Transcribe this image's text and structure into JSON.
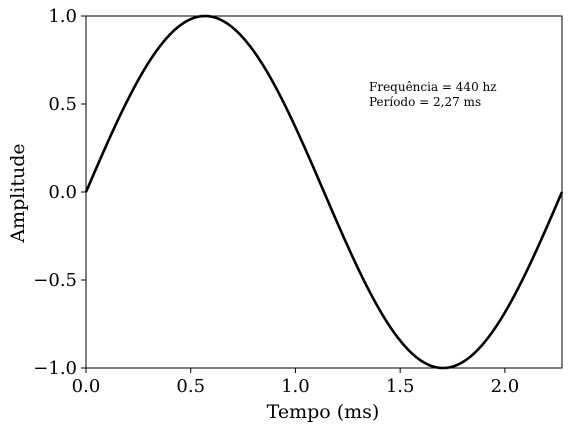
{
  "chart_data": {
    "type": "line",
    "title": "",
    "xlabel": "Tempo (ms)",
    "ylabel": "Amplitude",
    "xlim": [
      0,
      2.2727
    ],
    "ylim": [
      -1.0,
      1.0
    ],
    "grid": false,
    "x_ticks": [
      0.0,
      0.5,
      1.0,
      1.5,
      2.0
    ],
    "x_tick_labels": [
      "0.0",
      "0.5",
      "1.0",
      "1.5",
      "2.0"
    ],
    "y_ticks": [
      -1.0,
      -0.5,
      0.0,
      0.5,
      1.0
    ],
    "y_tick_labels": [
      "−1.0",
      "−0.5",
      "0.0",
      "0.5",
      "1.0"
    ],
    "annotations": [
      "Frequência = 440 hz",
      "Período = 2,27 ms"
    ],
    "series": [
      {
        "color": "#000000",
        "x": [
          0.0,
          0.1,
          0.2,
          0.3,
          0.4,
          0.5,
          0.568,
          0.6,
          0.7,
          0.8,
          0.9,
          1.0,
          1.1,
          1.136,
          1.2,
          1.3,
          1.4,
          1.5,
          1.6,
          1.705,
          1.8,
          1.9,
          2.0,
          2.1,
          2.2,
          2.2727
        ],
        "y": [
          0.0,
          0.27,
          0.52,
          0.74,
          0.89,
          0.98,
          1.0,
          1.0,
          0.96,
          0.85,
          0.67,
          0.45,
          0.19,
          0.0,
          -0.17,
          -0.43,
          -0.66,
          -0.83,
          -0.95,
          -1.0,
          -0.98,
          -0.9,
          -0.75,
          -0.54,
          -0.29,
          0.0
        ]
      }
    ]
  }
}
